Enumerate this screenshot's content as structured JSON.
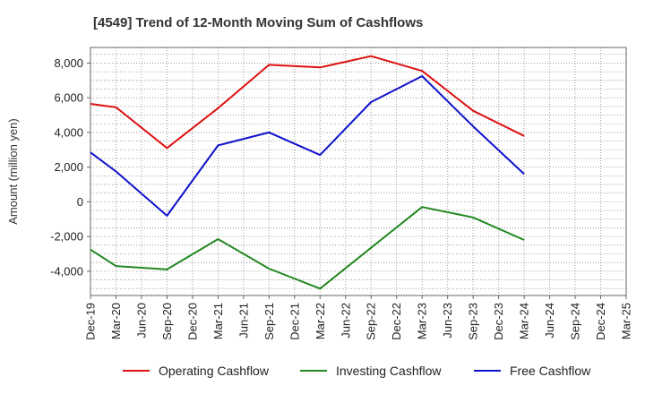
{
  "chart_data": {
    "type": "line",
    "title": "[4549]  Trend of 12-Month Moving Sum of Cashflows",
    "xlabel": "",
    "ylabel": "Amount (million yen)",
    "ylim": [
      -5400,
      8900
    ],
    "yticks": [
      8000,
      6000,
      4000,
      2000,
      0,
      -2000,
      -4000
    ],
    "ytick_labels": [
      "8,000",
      "6,000",
      "4,000",
      "2,000",
      "0",
      "-2,000",
      "-4,000"
    ],
    "categories": [
      "Dec-19",
      "Mar-20",
      "Jun-20",
      "Sep-20",
      "Dec-20",
      "Mar-21",
      "Jun-21",
      "Sep-21",
      "Dec-21",
      "Mar-22",
      "Jun-22",
      "Sep-22",
      "Dec-22",
      "Mar-23",
      "Jun-23",
      "Sep-23",
      "Dec-23",
      "Mar-24",
      "Jun-24",
      "Sep-24",
      "Dec-24",
      "Mar-25"
    ],
    "grid": true,
    "legend_position": "bottom",
    "series": [
      {
        "name": "Operating Cashflow",
        "color": "#dd1111",
        "values": [
          5650,
          5450,
          null,
          3100,
          null,
          5400,
          null,
          7900,
          null,
          7750,
          null,
          8400,
          null,
          7550,
          null,
          5250,
          null,
          3800,
          null,
          null,
          null,
          null
        ]
      },
      {
        "name": "Investing Cashflow",
        "color": "#228822",
        "values": [
          -2750,
          -3700,
          null,
          -3900,
          null,
          -2150,
          null,
          -3850,
          null,
          -5000,
          null,
          -2650,
          null,
          -300,
          null,
          -900,
          null,
          -2200,
          null,
          null,
          null,
          null
        ]
      },
      {
        "name": "Free Cashflow",
        "color": "#1111cc",
        "values": [
          2850,
          1750,
          null,
          -800,
          null,
          3250,
          null,
          4000,
          null,
          2700,
          null,
          5750,
          null,
          7250,
          null,
          4350,
          null,
          1600,
          null,
          null,
          null,
          null
        ]
      }
    ]
  }
}
